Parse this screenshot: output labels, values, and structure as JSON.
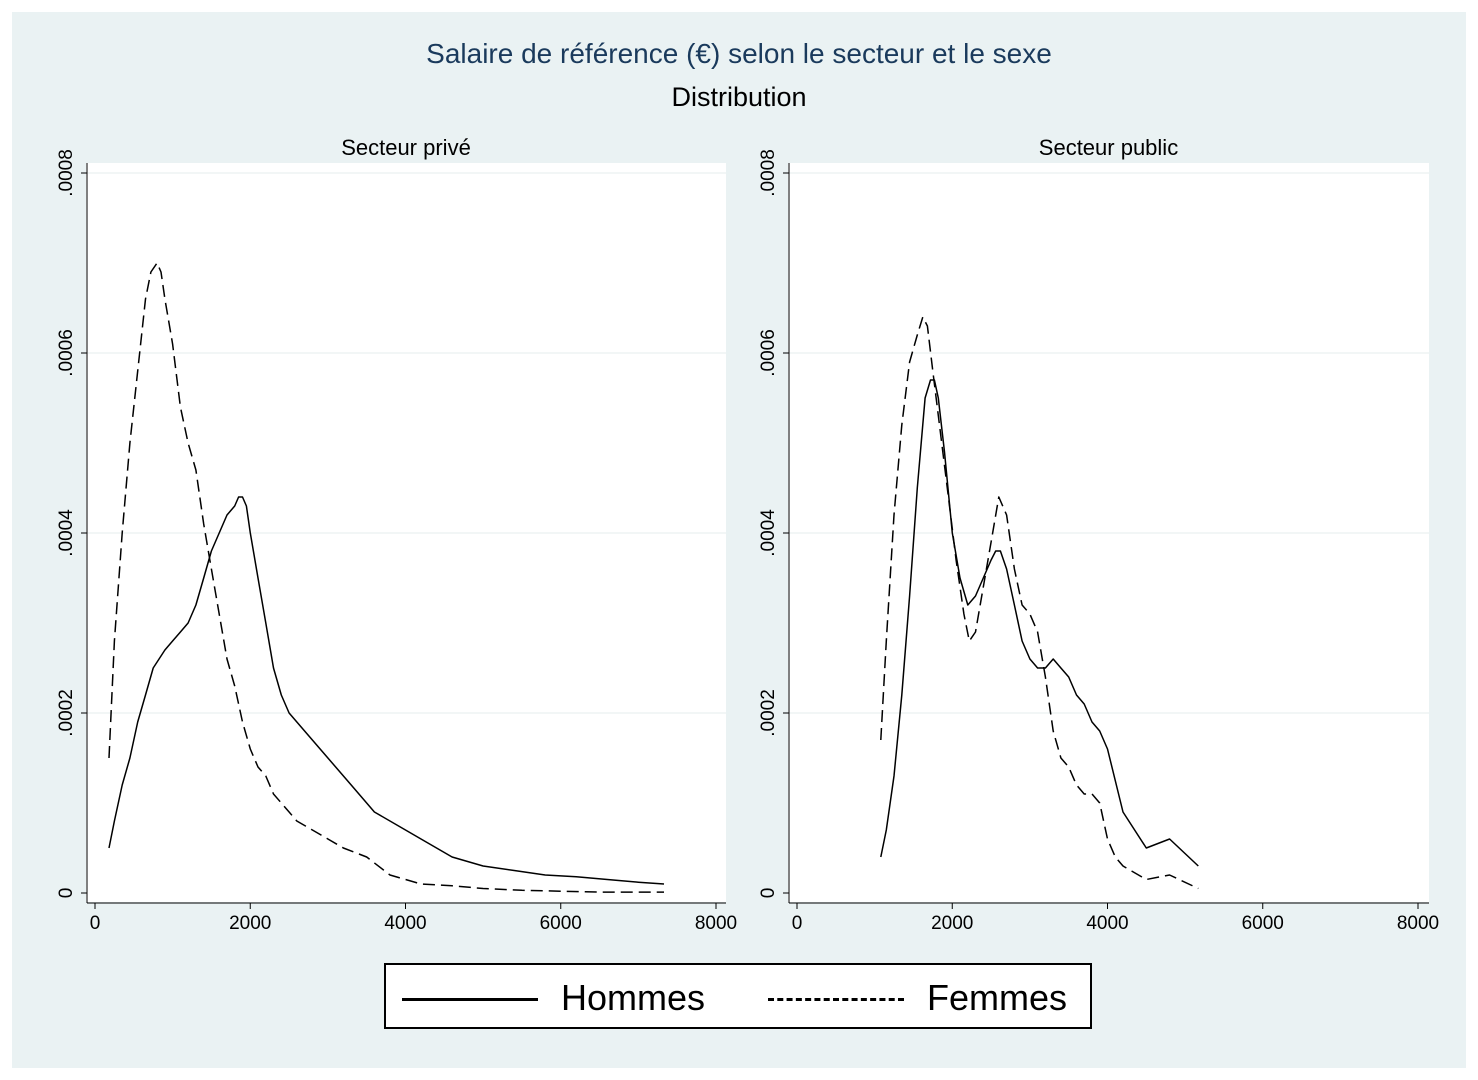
{
  "title": "Salaire de référence (€) selon le secteur et le sexe",
  "subtitle": "Distribution",
  "legend": {
    "hommes": "Hommes",
    "femmes": "Femmes"
  },
  "chart_data": [
    {
      "type": "line",
      "title": "Secteur privé",
      "xlim": [
        0,
        8000
      ],
      "ylim": [
        0,
        0.0008
      ],
      "x_ticks": [
        "0",
        "2000",
        "4000",
        "6000",
        "8000"
      ],
      "y_ticks": [
        "0",
        ".0002",
        ".0004",
        ".0006",
        ".0008"
      ],
      "grid": true,
      "legend_position": "bottom",
      "series": [
        {
          "name": "Hommes",
          "style": "solid",
          "x": [
            180,
            250,
            350,
            450,
            550,
            650,
            750,
            900,
            1000,
            1100,
            1200,
            1300,
            1400,
            1500,
            1600,
            1700,
            1800,
            1850,
            1900,
            1950,
            2000,
            2100,
            2200,
            2300,
            2400,
            2500,
            2700,
            3000,
            3300,
            3600,
            4000,
            4200,
            4600,
            5000,
            5400,
            5800,
            6200,
            6600,
            7000,
            7330
          ],
          "y": [
            5e-05,
            8e-05,
            0.00012,
            0.00015,
            0.00019,
            0.00022,
            0.00025,
            0.00027,
            0.00028,
            0.00029,
            0.0003,
            0.00032,
            0.00035,
            0.00038,
            0.0004,
            0.00042,
            0.00043,
            0.00044,
            0.00044,
            0.00043,
            0.0004,
            0.00035,
            0.0003,
            0.00025,
            0.00022,
            0.0002,
            0.00018,
            0.00015,
            0.00012,
            9e-05,
            7e-05,
            6e-05,
            4e-05,
            3e-05,
            2.5e-05,
            2e-05,
            1.8e-05,
            1.5e-05,
            1.2e-05,
            1e-05
          ]
        },
        {
          "name": "Femmes",
          "style": "dashed",
          "x": [
            180,
            250,
            350,
            450,
            550,
            650,
            720,
            800,
            850,
            900,
            1000,
            1100,
            1200,
            1300,
            1400,
            1500,
            1600,
            1700,
            1800,
            1900,
            2000,
            2100,
            2200,
            2300,
            2400,
            2500,
            2600,
            2800,
            3000,
            3200,
            3500,
            3800,
            4200,
            4600,
            5000,
            5500,
            6000,
            6500,
            7000,
            7330
          ],
          "y": [
            0.00015,
            0.00028,
            0.0004,
            0.0005,
            0.00058,
            0.00066,
            0.00069,
            0.0007,
            0.00069,
            0.00066,
            0.00061,
            0.00054,
            0.0005,
            0.00047,
            0.00041,
            0.00036,
            0.00031,
            0.00026,
            0.00023,
            0.00019,
            0.00016,
            0.00014,
            0.00013,
            0.00011,
            0.0001,
            9e-05,
            8e-05,
            7e-05,
            6e-05,
            5e-05,
            4e-05,
            2e-05,
            1e-05,
            8e-06,
            5e-06,
            3e-06,
            2e-06,
            1e-06,
            1e-06,
            1e-06
          ]
        }
      ]
    },
    {
      "type": "line",
      "title": "Secteur public",
      "xlim": [
        0,
        8000
      ],
      "ylim": [
        0,
        0.0008
      ],
      "x_ticks": [
        "0",
        "2000",
        "4000",
        "6000",
        "8000"
      ],
      "y_ticks": [
        "0",
        ".0002",
        ".0004",
        ".0006",
        ".0008"
      ],
      "grid": true,
      "legend_position": "bottom",
      "series": [
        {
          "name": "Hommes",
          "style": "solid",
          "x": [
            1080,
            1150,
            1250,
            1350,
            1450,
            1550,
            1650,
            1720,
            1770,
            1820,
            1900,
            2000,
            2100,
            2200,
            2300,
            2400,
            2500,
            2560,
            2620,
            2700,
            2800,
            2900,
            3000,
            3100,
            3200,
            3300,
            3400,
            3500,
            3600,
            3700,
            3800,
            3900,
            4000,
            4200,
            4500,
            4800,
            5170
          ],
          "y": [
            4e-05,
            7e-05,
            0.00013,
            0.00022,
            0.00033,
            0.00045,
            0.00055,
            0.00057,
            0.00057,
            0.00055,
            0.00049,
            0.0004,
            0.00035,
            0.00032,
            0.00033,
            0.00035,
            0.00037,
            0.00038,
            0.00038,
            0.00036,
            0.00032,
            0.00028,
            0.00026,
            0.00025,
            0.00025,
            0.00026,
            0.00025,
            0.00024,
            0.00022,
            0.00021,
            0.00019,
            0.00018,
            0.00016,
            9e-05,
            5e-05,
            6e-05,
            3e-05
          ]
        },
        {
          "name": "Femmes",
          "style": "dashed",
          "x": [
            1080,
            1150,
            1250,
            1350,
            1450,
            1550,
            1620,
            1680,
            1750,
            1850,
            1950,
            2050,
            2150,
            2220,
            2300,
            2400,
            2500,
            2600,
            2700,
            2800,
            2900,
            3000,
            3100,
            3200,
            3300,
            3400,
            3500,
            3600,
            3700,
            3800,
            3900,
            4000,
            4100,
            4200,
            4500,
            4800,
            5170
          ],
          "y": [
            0.00017,
            0.00028,
            0.00042,
            0.00052,
            0.00059,
            0.00062,
            0.00064,
            0.00063,
            0.00058,
            0.00051,
            0.00044,
            0.00037,
            0.00031,
            0.00028,
            0.00029,
            0.00034,
            0.00039,
            0.00044,
            0.00042,
            0.00036,
            0.00032,
            0.00031,
            0.00029,
            0.00024,
            0.00018,
            0.00015,
            0.00014,
            0.00012,
            0.00011,
            0.00011,
            0.0001,
            6e-05,
            4e-05,
            3e-05,
            1.5e-05,
            2e-05,
            5e-06
          ]
        }
      ]
    }
  ]
}
